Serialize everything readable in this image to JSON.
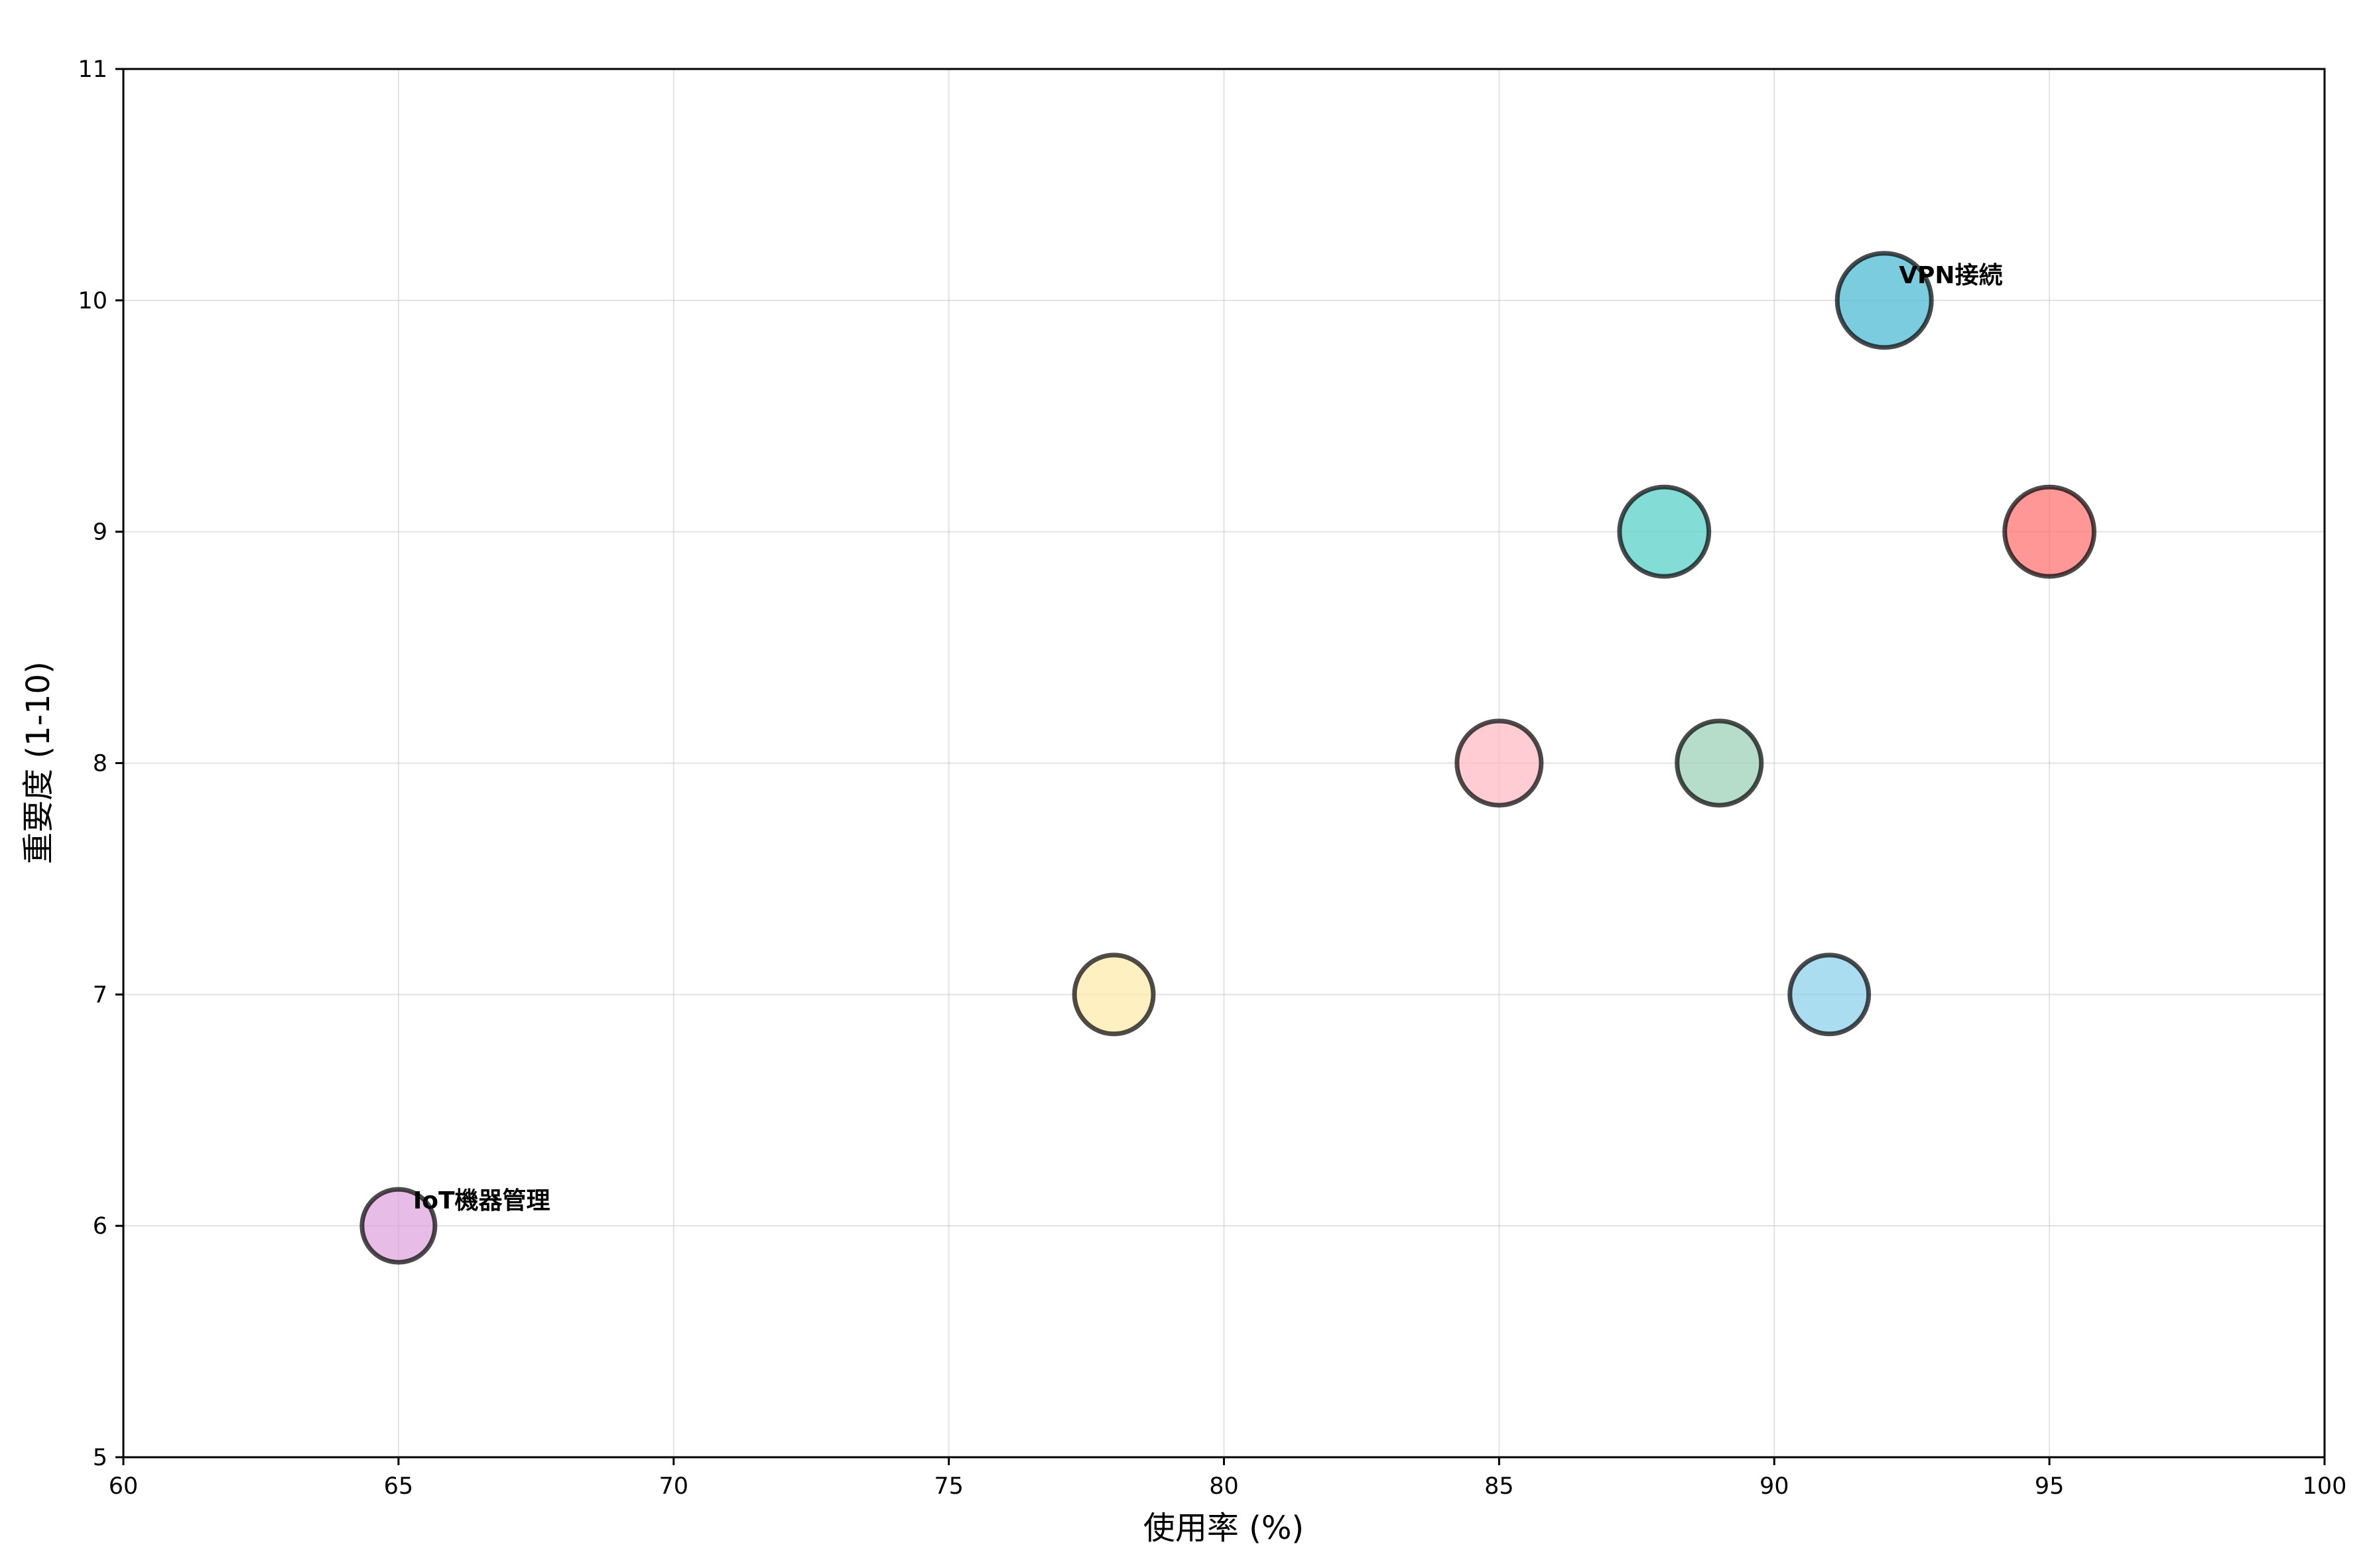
{
  "chart_data": {
    "type": "scatter",
    "title": "",
    "xlabel": "使用率 (%)",
    "ylabel": "重要度 (1-10)",
    "xlim": [
      60,
      100
    ],
    "ylim": [
      5,
      11
    ],
    "xticks": [
      60,
      65,
      70,
      75,
      80,
      85,
      90,
      95,
      100
    ],
    "yticks": [
      5,
      6,
      7,
      8,
      9,
      10,
      11
    ],
    "grid": true,
    "points": [
      {
        "label": "",
        "x": 95,
        "y": 9,
        "size": 9,
        "color": "#FF6B6B",
        "bold": false
      },
      {
        "label": "",
        "x": 88,
        "y": 9,
        "size": 9,
        "color": "#4ECDC4",
        "bold": false
      },
      {
        "label": "VPN接続",
        "x": 92,
        "y": 10,
        "size": 10,
        "color": "#45B7D1",
        "bold": true
      },
      {
        "label": "",
        "x": 91,
        "y": 7,
        "size": 7,
        "color": "#87CEEB",
        "bold": false
      },
      {
        "label": "",
        "x": 78,
        "y": 7,
        "size": 7,
        "color": "#FFEAA7",
        "bold": false
      },
      {
        "label": "",
        "x": 89,
        "y": 8,
        "size": 8,
        "color": "#96CEB4",
        "bold": false
      },
      {
        "label": "",
        "x": 85,
        "y": 8,
        "size": 8,
        "color": "#FFB6C1",
        "bold": false
      },
      {
        "label": "IoT機器管理",
        "x": 65,
        "y": 6,
        "size": 6,
        "color": "#DDA0DD",
        "bold": true
      }
    ]
  }
}
